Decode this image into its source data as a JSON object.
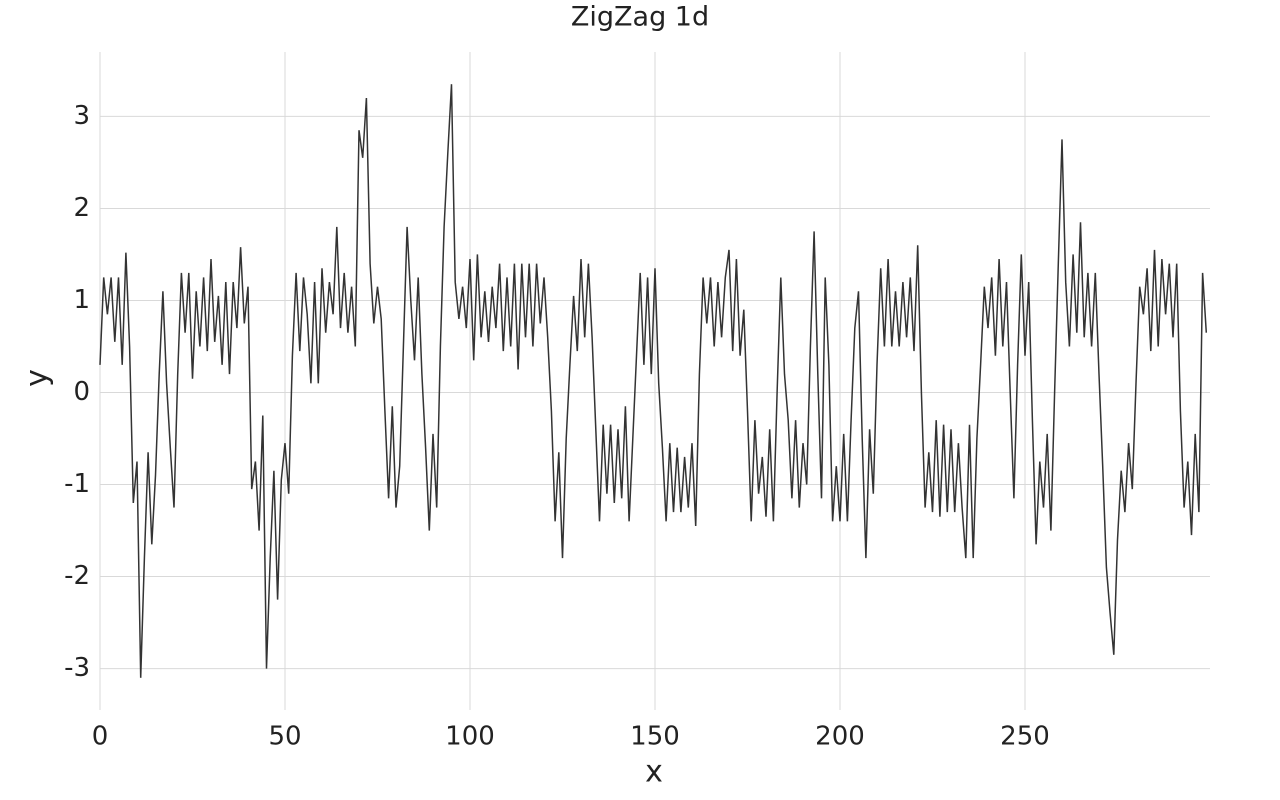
{
  "chart_data": {
    "type": "line",
    "title": "ZigZag 1d",
    "xlabel": "x",
    "ylabel": "y",
    "x": [
      0,
      1,
      2,
      3,
      4,
      5,
      6,
      7,
      8,
      9,
      10,
      11,
      12,
      13,
      14,
      15,
      16,
      17,
      18,
      19,
      20,
      21,
      22,
      23,
      24,
      25,
      26,
      27,
      28,
      29,
      30,
      31,
      32,
      33,
      34,
      35,
      36,
      37,
      38,
      39,
      40,
      41,
      42,
      43,
      44,
      45,
      46,
      47,
      48,
      49,
      50,
      51,
      52,
      53,
      54,
      55,
      56,
      57,
      58,
      59,
      60,
      61,
      62,
      63,
      64,
      65,
      66,
      67,
      68,
      69,
      70,
      71,
      72,
      73,
      74,
      75,
      76,
      77,
      78,
      79,
      80,
      81,
      82,
      83,
      84,
      85,
      86,
      87,
      88,
      89,
      90,
      91,
      92,
      93,
      94,
      95,
      96,
      97,
      98,
      99,
      100,
      101,
      102,
      103,
      104,
      105,
      106,
      107,
      108,
      109,
      110,
      111,
      112,
      113,
      114,
      115,
      116,
      117,
      118,
      119,
      120,
      121,
      122,
      123,
      124,
      125,
      126,
      127,
      128,
      129,
      130,
      131,
      132,
      133,
      134,
      135,
      136,
      137,
      138,
      139,
      140,
      141,
      142,
      143,
      144,
      145,
      146,
      147,
      148,
      149,
      150,
      151,
      152,
      153,
      154,
      155,
      156,
      157,
      158,
      159,
      160,
      161,
      162,
      163,
      164,
      165,
      166,
      167,
      168,
      169,
      170,
      171,
      172,
      173,
      174,
      175,
      176,
      177,
      178,
      179,
      180,
      181,
      182,
      183,
      184,
      185,
      186,
      187,
      188,
      189,
      190,
      191,
      192,
      193,
      194,
      195,
      196,
      197,
      198,
      199,
      200,
      201,
      202,
      203,
      204,
      205,
      206,
      207,
      208,
      209,
      210,
      211,
      212,
      213,
      214,
      215,
      216,
      217,
      218,
      219,
      220,
      221,
      222,
      223,
      224,
      225,
      226,
      227,
      228,
      229,
      230,
      231,
      232,
      233,
      234,
      235,
      236,
      237,
      238,
      239,
      240,
      241,
      242,
      243,
      244,
      245,
      246,
      247,
      248,
      249,
      250,
      251,
      252,
      253,
      254,
      255,
      256,
      257,
      258,
      259,
      260,
      261,
      262,
      263,
      264,
      265,
      266,
      267,
      268,
      269,
      270,
      271,
      272,
      273,
      274,
      275,
      276,
      277,
      278,
      279,
      280,
      281,
      282,
      283,
      284,
      285,
      286,
      287,
      288,
      289,
      290,
      291,
      292,
      293,
      294,
      295,
      296,
      297,
      298,
      299
    ],
    "series": [
      {
        "color": "#333333",
        "values": [
          0.3,
          1.25,
          0.85,
          1.25,
          0.55,
          1.25,
          0.3,
          1.52,
          0.5,
          -1.2,
          -0.75,
          -3.1,
          -1.8,
          -0.65,
          -1.65,
          -0.9,
          0.2,
          1.1,
          0.1,
          -0.6,
          -1.25,
          0.2,
          1.3,
          0.65,
          1.3,
          0.15,
          1.1,
          0.5,
          1.25,
          0.45,
          1.45,
          0.55,
          1.05,
          0.3,
          1.2,
          0.2,
          1.2,
          0.7,
          1.58,
          0.75,
          1.15,
          -1.05,
          -0.75,
          -1.5,
          -0.25,
          -3.0,
          -1.8,
          -0.85,
          -2.25,
          -0.95,
          -0.55,
          -1.1,
          0.4,
          1.3,
          0.45,
          1.25,
          0.85,
          0.1,
          1.2,
          0.1,
          1.35,
          0.65,
          1.2,
          0.85,
          1.8,
          0.7,
          1.3,
          0.65,
          1.15,
          0.5,
          2.85,
          2.55,
          3.2,
          1.4,
          0.75,
          1.15,
          0.8,
          -0.2,
          -1.15,
          -0.15,
          -1.25,
          -0.8,
          0.5,
          1.8,
          1.0,
          0.35,
          1.25,
          0.2,
          -0.6,
          -1.5,
          -0.45,
          -1.25,
          0.5,
          1.8,
          2.6,
          3.35,
          1.2,
          0.8,
          1.15,
          0.7,
          1.45,
          0.35,
          1.5,
          0.6,
          1.1,
          0.55,
          1.15,
          0.7,
          1.4,
          0.45,
          1.25,
          0.5,
          1.4,
          0.25,
          1.4,
          0.6,
          1.4,
          0.5,
          1.4,
          0.75,
          1.25,
          0.6,
          -0.2,
          -1.4,
          -0.65,
          -1.8,
          -0.5,
          0.3,
          1.05,
          0.45,
          1.45,
          0.6,
          1.4,
          0.6,
          -0.4,
          -1.4,
          -0.35,
          -1.1,
          -0.35,
          -1.2,
          -0.4,
          -1.15,
          -0.15,
          -1.4,
          -0.5,
          0.4,
          1.3,
          0.3,
          1.25,
          0.2,
          1.35,
          0.1,
          -0.6,
          -1.4,
          -0.55,
          -1.3,
          -0.6,
          -1.3,
          -0.7,
          -1.25,
          -0.55,
          -1.45,
          0.2,
          1.25,
          0.75,
          1.25,
          0.5,
          1.2,
          0.6,
          1.25,
          1.55,
          0.45,
          1.45,
          0.4,
          0.9,
          -0.2,
          -1.4,
          -0.3,
          -1.1,
          -0.7,
          -1.35,
          -0.4,
          -1.4,
          0.0,
          1.25,
          0.2,
          -0.3,
          -1.15,
          -0.3,
          -1.25,
          -0.55,
          -1.0,
          0.5,
          1.75,
          0.2,
          -1.15,
          1.25,
          0.3,
          -1.4,
          -0.8,
          -1.4,
          -0.45,
          -1.4,
          -0.3,
          0.7,
          1.1,
          -0.5,
          -1.8,
          -0.4,
          -1.1,
          0.3,
          1.35,
          0.5,
          1.45,
          0.5,
          1.1,
          0.5,
          1.2,
          0.6,
          1.25,
          0.45,
          1.6,
          0.0,
          -1.25,
          -0.65,
          -1.3,
          -0.3,
          -1.35,
          -0.35,
          -1.3,
          -0.4,
          -1.3,
          -0.55,
          -1.25,
          -1.8,
          -0.35,
          -1.8,
          -0.5,
          0.3,
          1.15,
          0.7,
          1.25,
          0.4,
          1.45,
          0.5,
          1.2,
          0.0,
          -1.15,
          0.3,
          1.5,
          0.4,
          1.2,
          -0.3,
          -1.65,
          -0.75,
          -1.25,
          -0.45,
          -1.5,
          0.0,
          1.4,
          2.75,
          1.2,
          0.5,
          1.5,
          0.65,
          1.85,
          0.6,
          1.3,
          0.5,
          1.3,
          0.2,
          -0.8,
          -1.9,
          -2.4,
          -2.85,
          -1.6,
          -0.85,
          -1.3,
          -0.55,
          -1.05,
          0.1,
          1.15,
          0.85,
          1.35,
          0.45,
          1.55,
          0.5,
          1.45,
          0.85,
          1.4,
          0.6,
          1.4,
          -0.2,
          -1.25,
          -0.75,
          -1.55,
          -0.45,
          -1.3,
          1.3,
          0.65
        ]
      }
    ],
    "xlim": [
      0,
      300
    ],
    "ylim": [
      -3.45,
      3.7
    ],
    "xticks": [
      0,
      50,
      100,
      150,
      200,
      250
    ],
    "yticks": [
      -3,
      -2,
      -1,
      0,
      1,
      2,
      3
    ],
    "grid": true
  }
}
